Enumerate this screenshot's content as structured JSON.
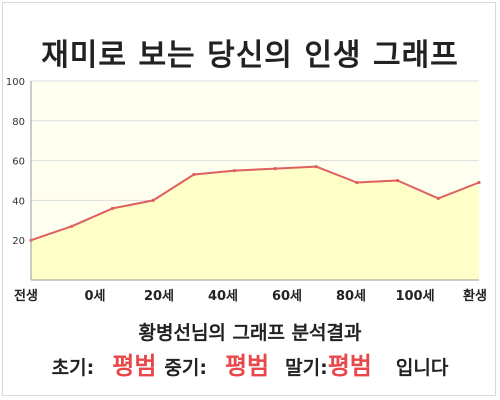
{
  "title": "재미로 보는 당신의 인생 그래프",
  "summary": "황병선님의 그래프 분석결과",
  "result": {
    "early_label": "초기:",
    "early_value": "평범",
    "middle_label": "중기:",
    "middle_value": "평범",
    "late_label": "말기:",
    "late_value": "평범",
    "suffix": "입니다"
  },
  "colors": {
    "line": "#e06060",
    "fill": "#ffffc8",
    "plot_bg": "#fffff0",
    "grid": "#dddddd",
    "accent": "#e8484a"
  },
  "chart_data": {
    "type": "area",
    "title": "",
    "xlabel": "",
    "ylabel": "",
    "ylim": [
      0,
      100
    ],
    "yticks": [
      20,
      40,
      60,
      80,
      100
    ],
    "xtick_labels": [
      "전생",
      "0세",
      "20세",
      "40세",
      "60세",
      "80세",
      "100세",
      "환생"
    ],
    "grid": true,
    "legend": "none",
    "series": [
      {
        "values": [
          20,
          27,
          36,
          40,
          53,
          55,
          56,
          57,
          49,
          50,
          41,
          49
        ]
      }
    ]
  }
}
